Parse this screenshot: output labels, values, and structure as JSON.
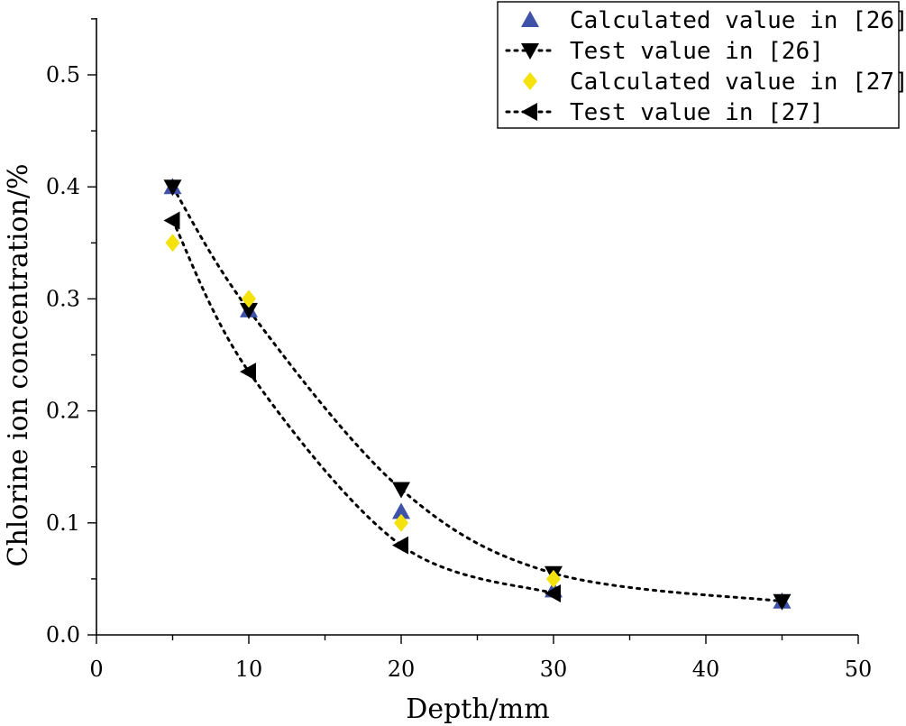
{
  "chart_data": {
    "type": "scatter",
    "title": "",
    "xlabel": "Depth/mm",
    "ylabel": "Chlorine ion concentration/%",
    "xlim": [
      0,
      50
    ],
    "ylim": [
      0,
      0.55
    ],
    "xticks": [
      0,
      10,
      20,
      30,
      40,
      50
    ],
    "xtick_labels": [
      "0",
      "10",
      "20",
      "30",
      "40",
      "50"
    ],
    "yticks": [
      0.0,
      0.1,
      0.2,
      0.3,
      0.4,
      0.5
    ],
    "ytick_labels": [
      "0.0",
      "0.1",
      "0.2",
      "0.3",
      "0.4",
      "0.5"
    ],
    "legend_position": "top-right",
    "series": [
      {
        "name": "Calculated value in [26]",
        "marker": "triangle-up",
        "color": "#3F51A8",
        "line": false,
        "x": [
          5,
          10,
          20,
          30,
          45
        ],
        "y": [
          0.4,
          0.29,
          0.11,
          0.04,
          0.03
        ]
      },
      {
        "name": "Test value in [26]",
        "marker": "triangle-down",
        "color": "#000000",
        "line": true,
        "x": [
          5,
          10,
          20,
          30,
          45
        ],
        "y": [
          0.4,
          0.29,
          0.13,
          0.055,
          0.03
        ]
      },
      {
        "name": "Calculated value in [27]",
        "marker": "diamond",
        "color": "#F5E20C",
        "line": false,
        "x": [
          5,
          10,
          20,
          30
        ],
        "y": [
          0.35,
          0.3,
          0.1,
          0.05
        ]
      },
      {
        "name": "Test value in [27]",
        "marker": "triangle-left",
        "color": "#000000",
        "line": true,
        "x": [
          5,
          10,
          20,
          30
        ],
        "y": [
          0.37,
          0.235,
          0.08,
          0.037
        ]
      }
    ]
  }
}
